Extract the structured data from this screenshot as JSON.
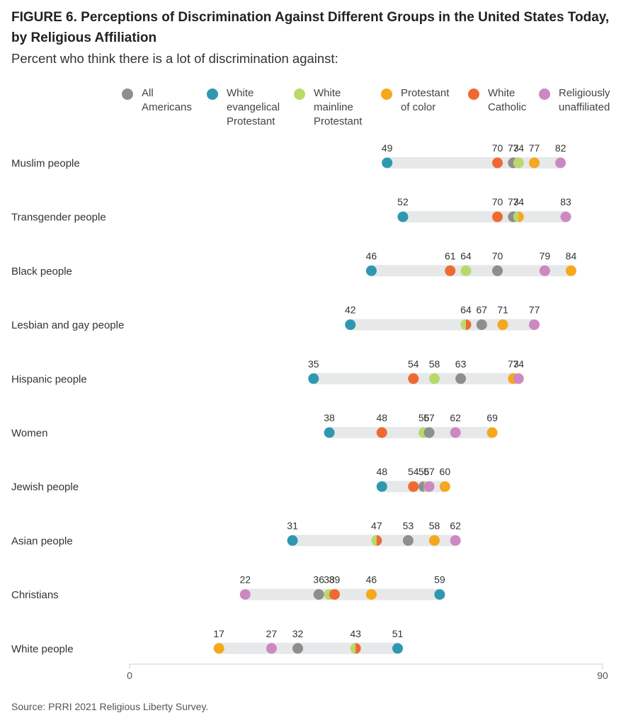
{
  "title": "FIGURE 6. Perceptions of Discrimination Against Different Groups in the United States Today, by Religious Affiliation",
  "subtitle": "Percent who think there is a lot of discrimination against:",
  "source": "Source: PRRI 2021 Religious Liberty Survey.",
  "legend": [
    {
      "lines": [
        "All",
        "Americans"
      ],
      "color": "#8e8e8e"
    },
    {
      "lines": [
        "White",
        "evangelical",
        "Protestant"
      ],
      "color": "#2f98b1"
    },
    {
      "lines": [
        "White",
        "mainline",
        "Protestant"
      ],
      "color": "#b9d96b"
    },
    {
      "lines": [
        "Protestant",
        "of color"
      ],
      "color": "#f5a81c"
    },
    {
      "lines": [
        "White",
        "Catholic"
      ],
      "color": "#ee6a32"
    },
    {
      "lines": [
        "Religiously",
        "unaffiliated"
      ],
      "color": "#cc88c0"
    }
  ],
  "chart_data": {
    "type": "scatter",
    "title": "FIGURE 6. Perceptions of Discrimination Against Different Groups in the United States Today, by Religious Affiliation",
    "subtitle": "Percent who think there is a lot of discrimination against:",
    "xlim": [
      0,
      90
    ],
    "x_ticks": [
      "0",
      "90"
    ],
    "grid": false,
    "legend_position": "top",
    "categories": [
      "Muslim people",
      "Transgender people",
      "Black people",
      "Lesbian and gay people",
      "Hispanic people",
      "Women",
      "Jewish people",
      "Asian people",
      "Christians",
      "White people"
    ],
    "series": [
      {
        "name": "All Americans",
        "color": "#8e8e8e",
        "values": [
          73,
          73,
          70,
          67,
          63,
          57,
          56,
          53,
          36,
          32
        ]
      },
      {
        "name": "White evangelical Protestant",
        "color": "#2f98b1",
        "values": [
          49,
          52,
          46,
          42,
          35,
          38,
          48,
          31,
          59,
          51
        ]
      },
      {
        "name": "White mainline Protestant",
        "color": "#b9d96b",
        "values": [
          74,
          74,
          64,
          64,
          58,
          56,
          56,
          47,
          38,
          43
        ]
      },
      {
        "name": "Protestant of color",
        "color": "#f5a81c",
        "values": [
          77,
          74,
          84,
          71,
          73,
          69,
          60,
          58,
          46,
          17
        ]
      },
      {
        "name": "White Catholic",
        "color": "#ee6a32",
        "values": [
          70,
          70,
          61,
          64,
          54,
          48,
          54,
          47,
          39,
          43
        ]
      },
      {
        "name": "Religiously unaffiliated",
        "color": "#cc88c0",
        "values": [
          82,
          83,
          79,
          77,
          74,
          62,
          57,
          62,
          22,
          27
        ]
      }
    ],
    "labels": [
      [
        "49",
        "70",
        "73",
        "74",
        "77",
        "82"
      ],
      [
        "52",
        "70",
        "73",
        "74",
        "83"
      ],
      [
        "46",
        "61",
        "64",
        "70",
        "79",
        "84"
      ],
      [
        "42",
        "64",
        "67",
        "71",
        "77"
      ],
      [
        "35",
        "54",
        "58",
        "63",
        "73",
        "74"
      ],
      [
        "38",
        "48",
        "56",
        "57",
        "62",
        "69"
      ],
      [
        "48",
        "54",
        "56",
        "57",
        "60"
      ],
      [
        "31",
        "47",
        "53",
        "58",
        "62"
      ],
      [
        "22",
        "36",
        "38",
        "39",
        "46",
        "59"
      ],
      [
        "17",
        "27",
        "32",
        "43",
        "51"
      ]
    ]
  }
}
